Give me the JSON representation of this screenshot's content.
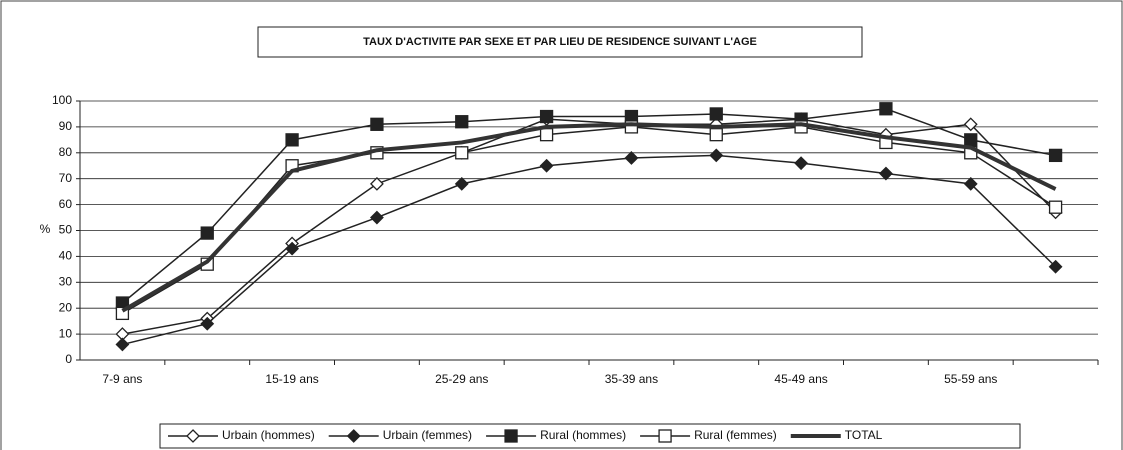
{
  "chart_data": {
    "type": "line",
    "title": "TAUX D'ACTIVITE PAR SEXE ET PAR LIEU DE RESIDENCE SUIVANT L'AGE",
    "ylabel": "%",
    "categories": [
      "7-9 ans",
      null,
      "15-19 ans",
      null,
      "25-29 ans",
      null,
      "35-39 ans",
      null,
      "45-49 ans",
      null,
      "55-59 ans",
      null
    ],
    "series": [
      {
        "name": "Urbain (hommes)",
        "color": "#222222",
        "marker": "diamond-open",
        "values": [
          10,
          16,
          45,
          68,
          80,
          93,
          91,
          91,
          93,
          87,
          91,
          57
        ]
      },
      {
        "name": "Urbain (femmes)",
        "color": "#222222",
        "marker": "diamond-filled",
        "values": [
          6,
          14,
          43,
          55,
          68,
          75,
          78,
          79,
          76,
          72,
          68,
          36
        ]
      },
      {
        "name": "Rural (hommes)",
        "color": "#222222",
        "marker": "square-filled",
        "values": [
          22,
          49,
          85,
          91,
          92,
          94,
          94,
          95,
          93,
          97,
          85,
          79
        ]
      },
      {
        "name": "Rural (femmes)",
        "color": "#222222",
        "marker": "square-open",
        "values": [
          18,
          37,
          75,
          80,
          80,
          87,
          90,
          87,
          90,
          84,
          80,
          59
        ]
      },
      {
        "name": "TOTAL",
        "color": "#333333",
        "marker": "none",
        "thick": true,
        "values": [
          19,
          38,
          73,
          81,
          84,
          90,
          91,
          90,
          91,
          86,
          82,
          66
        ]
      }
    ],
    "ylim": [
      0,
      100
    ],
    "yticks": [
      0,
      10,
      20,
      30,
      40,
      50,
      60,
      70,
      80,
      90,
      100
    ],
    "grid": true,
    "legend": "bottom"
  }
}
